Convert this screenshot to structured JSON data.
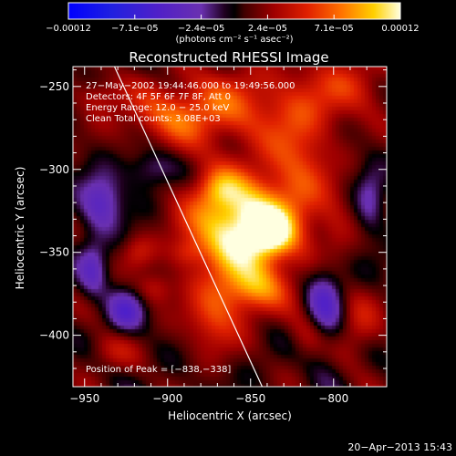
{
  "chart_data": {
    "type": "heatmap",
    "title": "Reconstructed RHESSI Image",
    "xlabel": "Heliocentric X (arcsec)",
    "ylabel": "Heliocentric Y (arcsec)",
    "xlim": [
      -957,
      -768
    ],
    "ylim": [
      -431,
      -238
    ],
    "xticks": [
      -950,
      -900,
      -850,
      -800
    ],
    "xtick_labels": [
      "−950",
      "−900",
      "−850",
      "−800"
    ],
    "yticks": [
      -250,
      -300,
      -350,
      -400
    ],
    "ytick_labels": [
      "−250",
      "−300",
      "−350",
      "−400"
    ],
    "colorbar": {
      "min": -0.00012,
      "max": 0.00012,
      "tick_labels": [
        "−0.00012",
        "−7.1e−05",
        "−2.4e−05",
        "2.4e−05",
        "7.1e−05",
        "0.00012"
      ],
      "units": "(photons cm⁻² s⁻¹ asec⁻²)"
    },
    "annotations": [
      "27−May−2002 19:44:46.000 to 19:49:56.000",
      "Detectors: 4F 5F 6F 7F 8F, Att 0",
      "Energy Range: 12.0 − 25.0 keV",
      "Clean     Total counts: 3.08E+03"
    ],
    "peak_label": "Position of Peak = [−838,−338]",
    "peak": {
      "x": -838,
      "y": -338
    },
    "limb_line": [
      {
        "x": -932,
        "y": -238
      },
      {
        "x": -843,
        "y": -431
      }
    ],
    "sources": [
      {
        "x": -855,
        "y": -335,
        "sx": 22,
        "sy": 22,
        "a": 3.6
      },
      {
        "x": -838,
        "y": -338,
        "sx": 9,
        "sy": 9,
        "a": 1.8
      },
      {
        "x": -870,
        "y": -312,
        "sx": 9,
        "sy": 8,
        "a": 1.0
      },
      {
        "x": -848,
        "y": -372,
        "sx": 14,
        "sy": 10,
        "a": 1.6
      },
      {
        "x": -872,
        "y": -390,
        "sx": 12,
        "sy": 14,
        "a": 1.4
      },
      {
        "x": -820,
        "y": -292,
        "sx": 14,
        "sy": 30,
        "a": 1.3
      },
      {
        "x": -862,
        "y": -262,
        "sx": 28,
        "sy": 16,
        "a": 1.4
      },
      {
        "x": -900,
        "y": -268,
        "sx": 20,
        "sy": 12,
        "a": 1.2
      },
      {
        "x": -790,
        "y": -250,
        "sx": 18,
        "sy": 14,
        "a": 1.1
      },
      {
        "x": -800,
        "y": -340,
        "sx": 8,
        "sy": 16,
        "a": 0.8
      },
      {
        "x": -908,
        "y": -372,
        "sx": 8,
        "sy": 7,
        "a": 0.9
      },
      {
        "x": -918,
        "y": -350,
        "sx": 7,
        "sy": 7,
        "a": 0.8
      },
      {
        "x": -888,
        "y": -350,
        "sx": 7,
        "sy": 6,
        "a": 0.7
      },
      {
        "x": -942,
        "y": -255,
        "sx": 10,
        "sy": 8,
        "a": 0.8
      },
      {
        "x": -815,
        "y": -400,
        "sx": 9,
        "sy": 10,
        "a": 0.8
      },
      {
        "x": -785,
        "y": -395,
        "sx": 10,
        "sy": 15,
        "a": 0.9
      },
      {
        "x": -935,
        "y": -410,
        "sx": 12,
        "sy": 8,
        "a": 0.7
      },
      {
        "x": -940,
        "y": -320,
        "sx": 9,
        "sy": 12,
        "a": -1.6
      },
      {
        "x": -925,
        "y": -385,
        "sx": 8,
        "sy": 9,
        "a": -1.5
      },
      {
        "x": -910,
        "y": -300,
        "sx": 10,
        "sy": 8,
        "a": -1.0
      },
      {
        "x": -805,
        "y": -380,
        "sx": 8,
        "sy": 22,
        "a": -1.5
      },
      {
        "x": -945,
        "y": -360,
        "sx": 6,
        "sy": 12,
        "a": -1.2
      },
      {
        "x": -778,
        "y": -320,
        "sx": 6,
        "sy": 14,
        "a": -1.0
      }
    ]
  },
  "footer": {
    "timestamp": "20−Apr−2013 15:43"
  }
}
